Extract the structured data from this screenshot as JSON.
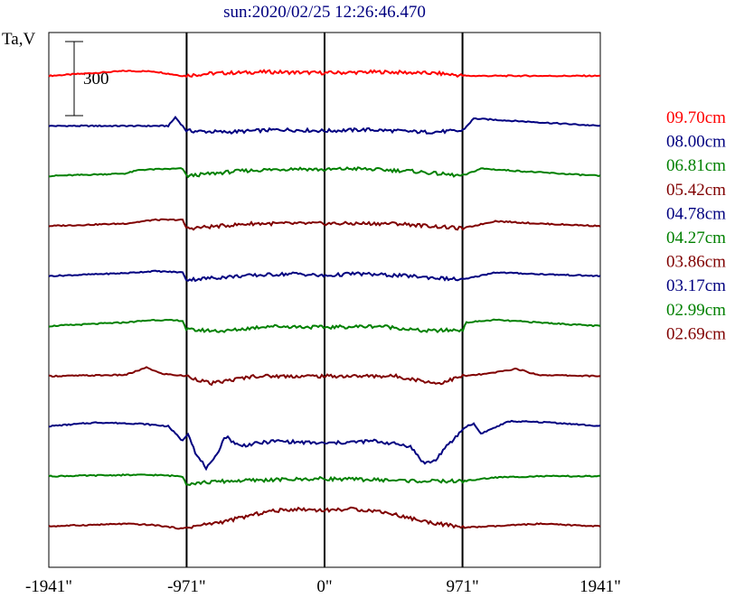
{
  "chart_data": {
    "type": "line",
    "title": "sun:2020/02/25 12:26:46.470",
    "ylabel": "Ta,V",
    "xlabel": "",
    "scale_bar": {
      "label": "300",
      "value": 300
    },
    "x_ticks": [
      {
        "value": -1941,
        "label": "-1941\""
      },
      {
        "value": -971,
        "label": "-971\""
      },
      {
        "value": 0,
        "label": "0\""
      },
      {
        "value": 971,
        "label": "971\""
      },
      {
        "value": 1941,
        "label": "1941\""
      }
    ],
    "xlim": [
      -1941,
      1941
    ],
    "vlines": [
      -971,
      0,
      971
    ],
    "series": [
      {
        "name": "09.70cm",
        "color": "#ff0000",
        "points": [
          [
            -1941,
            0
          ],
          [
            -1400,
            20
          ],
          [
            -1200,
            18
          ],
          [
            -1000,
            0
          ],
          [
            -800,
            10
          ],
          [
            -400,
            16
          ],
          [
            0,
            12
          ],
          [
            400,
            16
          ],
          [
            800,
            10
          ],
          [
            1000,
            0
          ],
          [
            1200,
            0
          ],
          [
            1941,
            0
          ]
        ]
      },
      {
        "name": "08.00cm",
        "color": "#000080",
        "points": [
          [
            -1941,
            0
          ],
          [
            -1100,
            0
          ],
          [
            -1050,
            35
          ],
          [
            -971,
            -20
          ],
          [
            -700,
            -25
          ],
          [
            -300,
            -15
          ],
          [
            0,
            -20
          ],
          [
            300,
            -15
          ],
          [
            700,
            -25
          ],
          [
            971,
            -20
          ],
          [
            1050,
            30
          ],
          [
            1941,
            0
          ]
        ]
      },
      {
        "name": "06.81cm",
        "color": "#008000",
        "points": [
          [
            -1941,
            0
          ],
          [
            -1400,
            10
          ],
          [
            -1300,
            25
          ],
          [
            -1000,
            30
          ],
          [
            -971,
            0
          ],
          [
            -600,
            20
          ],
          [
            -200,
            30
          ],
          [
            0,
            25
          ],
          [
            200,
            30
          ],
          [
            600,
            20
          ],
          [
            971,
            0
          ],
          [
            1100,
            30
          ],
          [
            1500,
            15
          ],
          [
            1941,
            0
          ]
        ]
      },
      {
        "name": "05.42cm",
        "color": "#800000",
        "points": [
          [
            -1941,
            0
          ],
          [
            -1400,
            10
          ],
          [
            -1200,
            25
          ],
          [
            -1000,
            25
          ],
          [
            -971,
            -10
          ],
          [
            -500,
            10
          ],
          [
            0,
            10
          ],
          [
            500,
            10
          ],
          [
            971,
            -10
          ],
          [
            1200,
            20
          ],
          [
            1500,
            10
          ],
          [
            1941,
            0
          ]
        ]
      },
      {
        "name": "04.78cm",
        "color": "#000080",
        "points": [
          [
            -1941,
            0
          ],
          [
            -1400,
            12
          ],
          [
            -1200,
            20
          ],
          [
            -1000,
            15
          ],
          [
            -971,
            -15
          ],
          [
            -600,
            0
          ],
          [
            -200,
            10
          ],
          [
            0,
            0
          ],
          [
            200,
            10
          ],
          [
            600,
            0
          ],
          [
            971,
            -15
          ],
          [
            1200,
            15
          ],
          [
            1500,
            8
          ],
          [
            1941,
            0
          ]
        ]
      },
      {
        "name": "04.27cm",
        "color": "#008000",
        "points": [
          [
            -1941,
            0
          ],
          [
            -1400,
            15
          ],
          [
            -1200,
            25
          ],
          [
            -1000,
            22
          ],
          [
            -971,
            -15
          ],
          [
            -700,
            -20
          ],
          [
            -400,
            0
          ],
          [
            0,
            -5
          ],
          [
            400,
            0
          ],
          [
            700,
            -20
          ],
          [
            971,
            -15
          ],
          [
            1000,
            15
          ],
          [
            1200,
            25
          ],
          [
            1941,
            0
          ]
        ]
      },
      {
        "name": "03.86cm",
        "color": "#800000",
        "points": [
          [
            -1941,
            0
          ],
          [
            -1400,
            5
          ],
          [
            -1250,
            35
          ],
          [
            -1150,
            10
          ],
          [
            -971,
            0
          ],
          [
            -800,
            -30
          ],
          [
            -500,
            0
          ],
          [
            0,
            0
          ],
          [
            500,
            0
          ],
          [
            800,
            -30
          ],
          [
            971,
            0
          ],
          [
            1150,
            10
          ],
          [
            1350,
            30
          ],
          [
            1500,
            5
          ],
          [
            1941,
            0
          ]
        ]
      },
      {
        "name": "03.17cm",
        "color": "#000080",
        "points": [
          [
            -1941,
            0
          ],
          [
            -1600,
            15
          ],
          [
            -1300,
            10
          ],
          [
            -1100,
            0
          ],
          [
            -1000,
            -60
          ],
          [
            -960,
            -25
          ],
          [
            -900,
            -120
          ],
          [
            -830,
            -170
          ],
          [
            -780,
            -140
          ],
          [
            -700,
            -40
          ],
          [
            -600,
            -80
          ],
          [
            -350,
            -60
          ],
          [
            0,
            -70
          ],
          [
            350,
            -60
          ],
          [
            600,
            -80
          ],
          [
            700,
            -150
          ],
          [
            780,
            -140
          ],
          [
            830,
            -100
          ],
          [
            900,
            -60
          ],
          [
            960,
            -20
          ],
          [
            1000,
            0
          ],
          [
            1050,
            10
          ],
          [
            1100,
            -30
          ],
          [
            1300,
            20
          ],
          [
            1600,
            15
          ],
          [
            1941,
            0
          ]
        ]
      },
      {
        "name": "02.99cm",
        "color": "#008000",
        "points": [
          [
            -1941,
            0
          ],
          [
            -1400,
            5
          ],
          [
            -1200,
            5
          ],
          [
            -1000,
            0
          ],
          [
            -971,
            -30
          ],
          [
            -700,
            -20
          ],
          [
            -400,
            -15
          ],
          [
            0,
            -10
          ],
          [
            400,
            -15
          ],
          [
            700,
            -20
          ],
          [
            971,
            -20
          ],
          [
            1200,
            -5
          ],
          [
            1500,
            0
          ],
          [
            1941,
            0
          ]
        ]
      },
      {
        "name": "02.69cm",
        "color": "#800000",
        "points": [
          [
            -1941,
            0
          ],
          [
            -1400,
            10
          ],
          [
            -1200,
            5
          ],
          [
            -1000,
            -10
          ],
          [
            -971,
            -5
          ],
          [
            -700,
            20
          ],
          [
            -400,
            60
          ],
          [
            -200,
            70
          ],
          [
            0,
            65
          ],
          [
            200,
            70
          ],
          [
            400,
            60
          ],
          [
            700,
            20
          ],
          [
            971,
            -5
          ],
          [
            1200,
            0
          ],
          [
            1500,
            10
          ],
          [
            1941,
            0
          ]
        ]
      }
    ]
  }
}
